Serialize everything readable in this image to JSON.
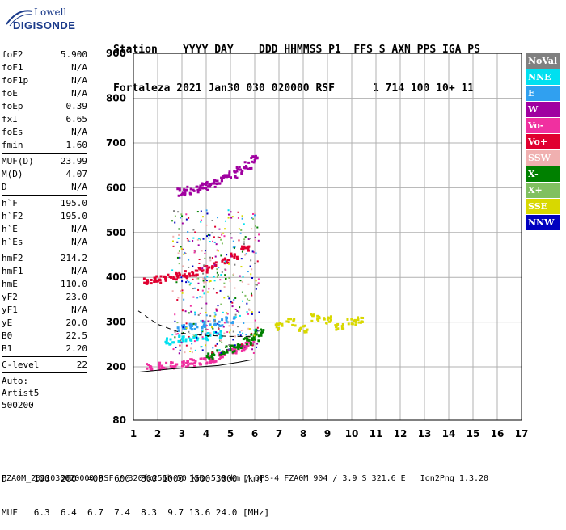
{
  "logo": {
    "top": "Lowell",
    "bottom": "DIGISONDE"
  },
  "header": {
    "row1": "Station    YYYY DAY    DDD HHMMSS P1  FFS S AXN PPS IGA PS",
    "row2": "Fortaleza 2021 Jan30 030 020000 RSF      1 714 100 10+ 11"
  },
  "params": [
    {
      "name": "foF2",
      "value": "5.900"
    },
    {
      "name": "foF1",
      "value": "N/A"
    },
    {
      "name": "foF1p",
      "value": "N/A"
    },
    {
      "name": "foE",
      "value": "N/A"
    },
    {
      "name": "foEp",
      "value": "0.39"
    },
    {
      "name": "fxI",
      "value": "6.65"
    },
    {
      "name": "foEs",
      "value": "N/A"
    },
    {
      "name": "fmin",
      "value": "1.60"
    },
    {
      "sep": true
    },
    {
      "name": "MUF(D)",
      "value": "23.99"
    },
    {
      "name": "M(D)",
      "value": "4.07"
    },
    {
      "name": "D",
      "value": "N/A"
    },
    {
      "sep": true
    },
    {
      "name": "h`F",
      "value": "195.0"
    },
    {
      "name": "h`F2",
      "value": "195.0"
    },
    {
      "name": "h`E",
      "value": "N/A"
    },
    {
      "name": "h`Es",
      "value": "N/A"
    },
    {
      "sep": true
    },
    {
      "name": "hmF2",
      "value": "214.2"
    },
    {
      "name": "hmF1",
      "value": "N/A"
    },
    {
      "name": "hmE",
      "value": "110.0"
    },
    {
      "name": "yF2",
      "value": "23.0"
    },
    {
      "name": "yF1",
      "value": "N/A"
    },
    {
      "name": "yE",
      "value": "20.0"
    },
    {
      "name": "B0",
      "value": "22.5"
    },
    {
      "name": "B1",
      "value": "2.20"
    },
    {
      "sep": true
    },
    {
      "name": "C-level",
      "value": "22"
    },
    {
      "sep": true
    }
  ],
  "auto": [
    "Auto:",
    "Artist5",
    "500200"
  ],
  "legend": [
    {
      "label": "NoVal",
      "color": "#808080"
    },
    {
      "label": "NNE",
      "color": "#00e0f0"
    },
    {
      "label": "E",
      "color": "#30a0f0"
    },
    {
      "label": "W",
      "color": "#a000a0"
    },
    {
      "label": "Vo-",
      "color": "#f030a0"
    },
    {
      "label": "Vo+",
      "color": "#e00030"
    },
    {
      "label": "SSW",
      "color": "#f0b0b0"
    },
    {
      "label": "X-",
      "color": "#008000"
    },
    {
      "label": "X+",
      "color": "#80c060"
    },
    {
      "label": "SSE",
      "color": "#d8d800"
    },
    {
      "label": "NNW",
      "color": "#0000c0"
    }
  ],
  "bottom": {
    "row1": "D     100  200  400  600  800 1000 1500 3000 [km]",
    "row2": "MUF   6.3  6.4  6.7  7.4  8.3  9.7 13.6 24.0 [MHz]"
  },
  "footer": "FZA0M_2021030020000.RSF / 320fx256h 50 kHz 5.0 km / DPS-4 FZA0M 904 / 3.9 S 321.6 E   Ion2Png 1.3.20",
  "chart_data": {
    "type": "scatter",
    "title": "",
    "xlabel": "",
    "ylabel": "",
    "xlim": [
      1,
      17
    ],
    "ylim": [
      80,
      900
    ],
    "xticks": [
      "1",
      "2",
      "3",
      "4",
      "5",
      "6",
      "7",
      "8",
      "9",
      "10",
      "11",
      "12",
      "13",
      "14",
      "15",
      "16",
      "17"
    ],
    "yticks": [
      "80",
      "200",
      "300",
      "400",
      "500",
      "600",
      "700",
      "800",
      "900"
    ],
    "grid": true,
    "series": [
      {
        "name": "Vo-",
        "x": [
          1.7,
          2.2,
          2.7,
          3.1,
          3.5,
          3.9,
          4.3,
          4.7,
          5.1,
          5.5,
          5.8
        ],
        "y": [
          200,
          201,
          203,
          206,
          209,
          213,
          218,
          224,
          232,
          242,
          255
        ]
      },
      {
        "name": "Vo+",
        "x": [
          1.6,
          2.0,
          2.4,
          2.8,
          3.2,
          3.6,
          4.0,
          4.4,
          4.8,
          5.2,
          5.6
        ],
        "y": [
          393,
          395,
          398,
          402,
          406,
          412,
          418,
          426,
          436,
          448,
          464
        ]
      },
      {
        "name": "W",
        "x": [
          3.0,
          3.3,
          3.6,
          3.9,
          4.2,
          4.5,
          4.8,
          5.1,
          5.4,
          5.7,
          6.0
        ],
        "y": [
          590,
          594,
          598,
          603,
          608,
          615,
          622,
          630,
          640,
          650,
          663
        ]
      },
      {
        "name": "X-",
        "x": [
          4.2,
          4.6,
          5.0,
          5.4,
          5.7,
          6.0,
          6.2
        ],
        "y": [
          225,
          232,
          240,
          248,
          256,
          266,
          276
        ]
      },
      {
        "name": "SSE",
        "x": [
          7.0,
          7.5,
          8.0,
          8.5,
          9.0,
          9.5,
          10.0,
          10.3
        ],
        "y": [
          290,
          300,
          285,
          310,
          305,
          290,
          300,
          305
        ]
      },
      {
        "name": "NNE",
        "x": [
          2.5,
          3.0,
          3.5,
          4.0,
          4.5
        ],
        "y": [
          258,
          262,
          266,
          268,
          272
        ]
      },
      {
        "name": "E",
        "x": [
          3.0,
          3.5,
          4.0,
          4.5,
          5.0
        ],
        "y": [
          285,
          290,
          294,
          298,
          305
        ]
      }
    ]
  }
}
